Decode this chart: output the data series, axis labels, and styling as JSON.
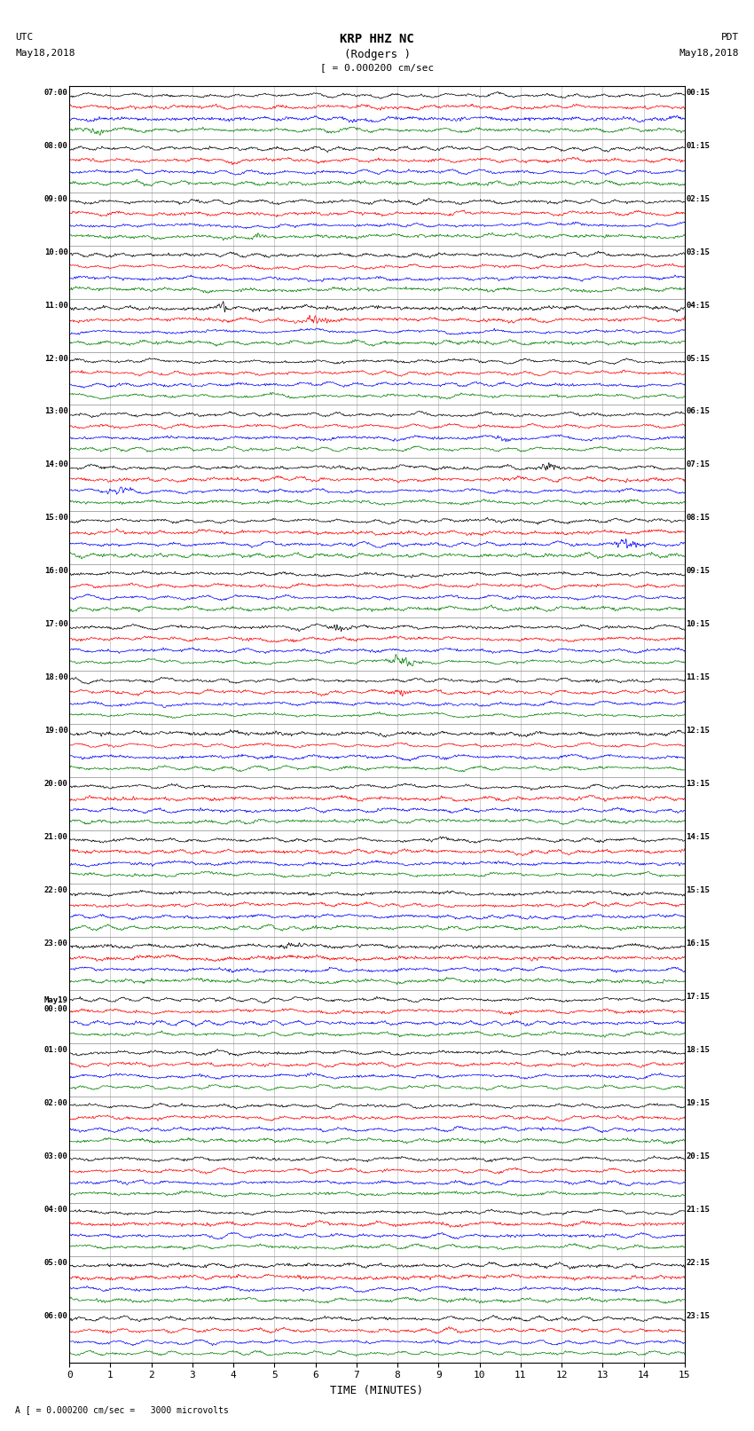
{
  "title_line1": "KRP HHZ NC",
  "title_line2": "(Rodgers )",
  "scale_label": "= 0.000200 cm/sec",
  "bottom_label": "A [ = 0.000200 cm/sec =   3000 microvolts",
  "xlabel": "TIME (MINUTES)",
  "left_header_line1": "UTC",
  "left_header_line2": "May18,2018",
  "right_header_line1": "PDT",
  "right_header_line2": "May18,2018",
  "left_times": [
    "07:00",
    "08:00",
    "09:00",
    "10:00",
    "11:00",
    "12:00",
    "13:00",
    "14:00",
    "15:00",
    "16:00",
    "17:00",
    "18:00",
    "19:00",
    "20:00",
    "21:00",
    "22:00",
    "23:00",
    "May19\n00:00",
    "01:00",
    "02:00",
    "03:00",
    "04:00",
    "05:00",
    "06:00"
  ],
  "right_times": [
    "00:15",
    "01:15",
    "02:15",
    "03:15",
    "04:15",
    "05:15",
    "06:15",
    "07:15",
    "08:15",
    "09:15",
    "10:15",
    "11:15",
    "12:15",
    "13:15",
    "14:15",
    "15:15",
    "16:15",
    "17:15",
    "18:15",
    "19:15",
    "20:15",
    "21:15",
    "22:15",
    "23:15"
  ],
  "n_rows": 24,
  "traces_per_row": 4,
  "trace_colors": [
    "black",
    "red",
    "blue",
    "green"
  ],
  "bg_color": "white",
  "fig_width": 8.5,
  "fig_height": 16.13,
  "dpi": 100,
  "x_ticks": [
    0,
    1,
    2,
    3,
    4,
    5,
    6,
    7,
    8,
    9,
    10,
    11,
    12,
    13,
    14,
    15
  ],
  "noise_seed": 42
}
